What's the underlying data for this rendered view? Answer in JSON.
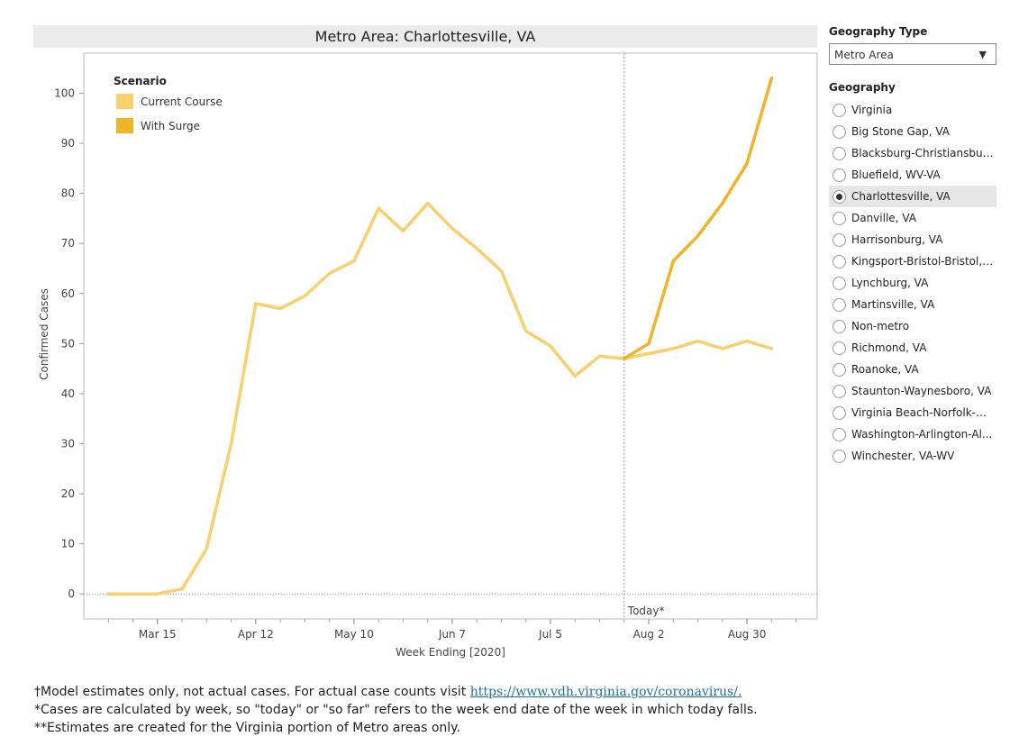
{
  "chart": {
    "title": "Metro Area: Charlottesville, VA"
  },
  "sidebar": {
    "geography_type_heading": "Geography Type",
    "geography_type_value": "Metro Area",
    "geography_heading": "Geography",
    "geographies": [
      {
        "label": "Virginia",
        "selected": false
      },
      {
        "label": "Big Stone Gap, VA",
        "selected": false
      },
      {
        "label": "Blacksburg-Christiansbur...",
        "selected": false
      },
      {
        "label": "Bluefield, WV-VA",
        "selected": false
      },
      {
        "label": "Charlottesville, VA",
        "selected": true
      },
      {
        "label": "Danville, VA",
        "selected": false
      },
      {
        "label": "Harrisonburg, VA",
        "selected": false
      },
      {
        "label": "Kingsport-Bristol-Bristol, ...",
        "selected": false
      },
      {
        "label": "Lynchburg, VA",
        "selected": false
      },
      {
        "label": "Martinsville, VA",
        "selected": false
      },
      {
        "label": "Non-metro",
        "selected": false
      },
      {
        "label": "Richmond, VA",
        "selected": false
      },
      {
        "label": "Roanoke, VA",
        "selected": false
      },
      {
        "label": "Staunton-Waynesboro, VA",
        "selected": false
      },
      {
        "label": "Virginia Beach-Norfolk-N...",
        "selected": false
      },
      {
        "label": "Washington-Arlington-Al...",
        "selected": false
      },
      {
        "label": "Winchester, VA-WV",
        "selected": false
      }
    ]
  },
  "footnotes": {
    "line1_prefix": "†Model estimates only, not actual cases. For actual case counts visit ",
    "line1_link": "https://www.vdh.virginia.gov/coronavirus/.",
    "line2": "*Cases are calculated by week, so \"today\" or \"so far\" refers to the week end date of the week in which today falls.",
    "line3": "**Estimates are created for the Virginia portion of Metro areas only."
  },
  "chart_data": {
    "type": "line",
    "title": "Metro Area: Charlottesville, VA",
    "xlabel": "Week Ending [2020]",
    "ylabel": "Confirmed Cases",
    "ylim": [
      -5,
      108
    ],
    "yticks": [
      0,
      10,
      20,
      30,
      40,
      50,
      60,
      70,
      80,
      90,
      100
    ],
    "xlim": [
      "2020-02-23",
      "2020-09-19"
    ],
    "xticks": [
      {
        "date": "2020-03-15",
        "label": "Mar 15"
      },
      {
        "date": "2020-04-12",
        "label": "Apr 12"
      },
      {
        "date": "2020-05-10",
        "label": "May 10"
      },
      {
        "date": "2020-06-07",
        "label": "Jun 7"
      },
      {
        "date": "2020-07-05",
        "label": "Jul 5"
      },
      {
        "date": "2020-08-02",
        "label": "Aug 2"
      },
      {
        "date": "2020-08-30",
        "label": "Aug 30"
      }
    ],
    "legend_title": "Scenario",
    "legend_position": "top-left",
    "today_marker": {
      "date": "2020-07-26",
      "label": "Today*"
    },
    "series": [
      {
        "name": "Current Course",
        "color": "#f9d06e",
        "points": [
          [
            "2020-03-01",
            0
          ],
          [
            "2020-03-08",
            0
          ],
          [
            "2020-03-15",
            0
          ],
          [
            "2020-03-22",
            1
          ],
          [
            "2020-03-29",
            9
          ],
          [
            "2020-04-05",
            30
          ],
          [
            "2020-04-12",
            58
          ],
          [
            "2020-04-19",
            57
          ],
          [
            "2020-04-26",
            59.5
          ],
          [
            "2020-05-03",
            64
          ],
          [
            "2020-05-10",
            66.5
          ],
          [
            "2020-05-17",
            77
          ],
          [
            "2020-05-24",
            72.5
          ],
          [
            "2020-05-31",
            78
          ],
          [
            "2020-06-07",
            73
          ],
          [
            "2020-06-14",
            69
          ],
          [
            "2020-06-21",
            64.5
          ],
          [
            "2020-06-28",
            52.5
          ],
          [
            "2020-07-05",
            49.5
          ],
          [
            "2020-07-12",
            43.5
          ],
          [
            "2020-07-19",
            47.5
          ],
          [
            "2020-07-26",
            47
          ],
          [
            "2020-08-02",
            48
          ],
          [
            "2020-08-09",
            49
          ],
          [
            "2020-08-16",
            50.5
          ],
          [
            "2020-08-23",
            49
          ],
          [
            "2020-08-30",
            50.5
          ],
          [
            "2020-09-06",
            49
          ]
        ]
      },
      {
        "name": "With Surge",
        "color": "#f0b429",
        "points": [
          [
            "2020-07-26",
            47
          ],
          [
            "2020-08-02",
            50
          ],
          [
            "2020-08-09",
            66.5
          ],
          [
            "2020-08-16",
            71.5
          ],
          [
            "2020-08-23",
            78
          ],
          [
            "2020-08-30",
            86
          ],
          [
            "2020-09-06",
            103
          ]
        ]
      }
    ]
  }
}
